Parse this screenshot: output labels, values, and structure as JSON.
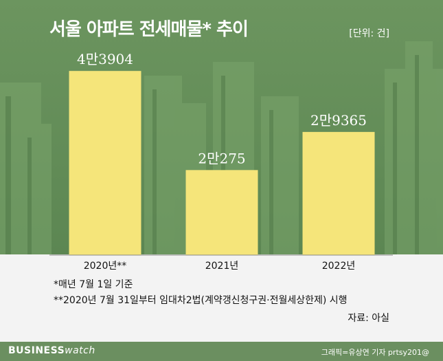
{
  "header": {
    "title": "서울 아파트 전세매물* 추이",
    "unit": "[단위: 건]"
  },
  "chart_data": {
    "type": "bar",
    "categories": [
      "2020년**",
      "2021년",
      "2022년"
    ],
    "values": [
      43904,
      20275,
      29365
    ],
    "value_labels": [
      "4만3904",
      "2만275",
      "2만9365"
    ],
    "ylim": [
      0,
      50000
    ],
    "grid": false,
    "bar_color": "#f5e57a"
  },
  "footnotes": {
    "note1": "*매년 7월 1일 기준",
    "note2": "**2020년 7월 31일부터 임대차2법(계약갱신청구권·전월세상한제) 시행"
  },
  "source": "자료: 아실",
  "footer": {
    "brand_bold": "BUSINESS",
    "brand_light": "watch",
    "credit": "그래픽=유상연 기자 prtsy201@"
  },
  "colors": {
    "background": "#5f8a55",
    "panel": "#f3f3f3"
  }
}
